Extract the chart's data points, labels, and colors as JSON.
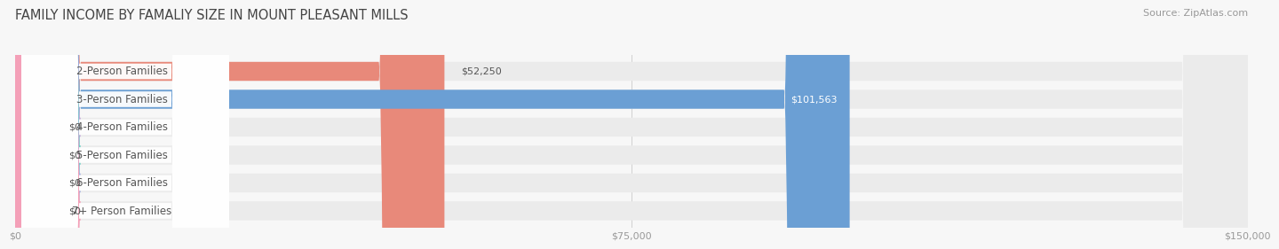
{
  "title": "FAMILY INCOME BY FAMALIY SIZE IN MOUNT PLEASANT MILLS",
  "source": "Source: ZipAtlas.com",
  "categories": [
    "2-Person Families",
    "3-Person Families",
    "4-Person Families",
    "5-Person Families",
    "6-Person Families",
    "7+ Person Families"
  ],
  "values": [
    52250,
    101563,
    0,
    0,
    0,
    0
  ],
  "bar_colors": [
    "#e8897a",
    "#6b9fd4",
    "#c2a8d8",
    "#6ecfc4",
    "#a8b4e0",
    "#f4a0b8"
  ],
  "value_labels": [
    "$52,250",
    "$101,563",
    "$0",
    "$0",
    "$0",
    "$0"
  ],
  "xlim": [
    0,
    150000
  ],
  "xticks": [
    0,
    75000,
    150000
  ],
  "xtick_labels": [
    "$0",
    "$75,000",
    "$150,000"
  ],
  "bg_color": "#f7f7f7",
  "bar_bg_color": "#ebebeb",
  "title_fontsize": 10.5,
  "source_fontsize": 8,
  "label_fontsize": 8.5,
  "value_fontsize": 8
}
